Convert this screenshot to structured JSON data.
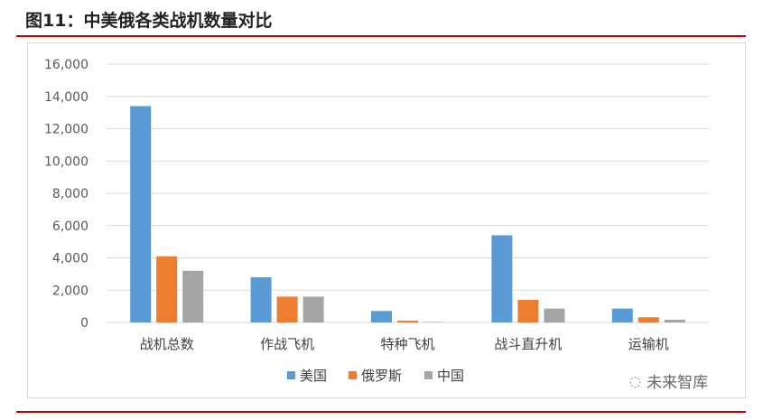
{
  "title": "图11：中美俄各类战机数量对比",
  "watermark": "未来智库",
  "chart_data": {
    "type": "bar",
    "title": "",
    "xlabel": "",
    "ylabel": "",
    "categories": [
      "战机总数",
      "作战飞机",
      "特种飞机",
      "战斗直升机",
      "运输机"
    ],
    "series": [
      {
        "name": "美国",
        "color": "#5b9bd5",
        "values": [
          13400,
          2800,
          710,
          5400,
          860
        ]
      },
      {
        "name": "俄罗斯",
        "color": "#ed7d31",
        "values": [
          4100,
          1600,
          110,
          1400,
          320
        ]
      },
      {
        "name": "中国",
        "color": "#a5a5a5",
        "values": [
          3200,
          1600,
          30,
          860,
          170
        ]
      }
    ],
    "ylim": [
      0,
      16000
    ],
    "yticks": [
      "0",
      "2,000",
      "4,000",
      "6,000",
      "8,000",
      "10,000",
      "12,000",
      "14,000",
      "16,000"
    ],
    "grid": true,
    "legend": "bottom"
  }
}
